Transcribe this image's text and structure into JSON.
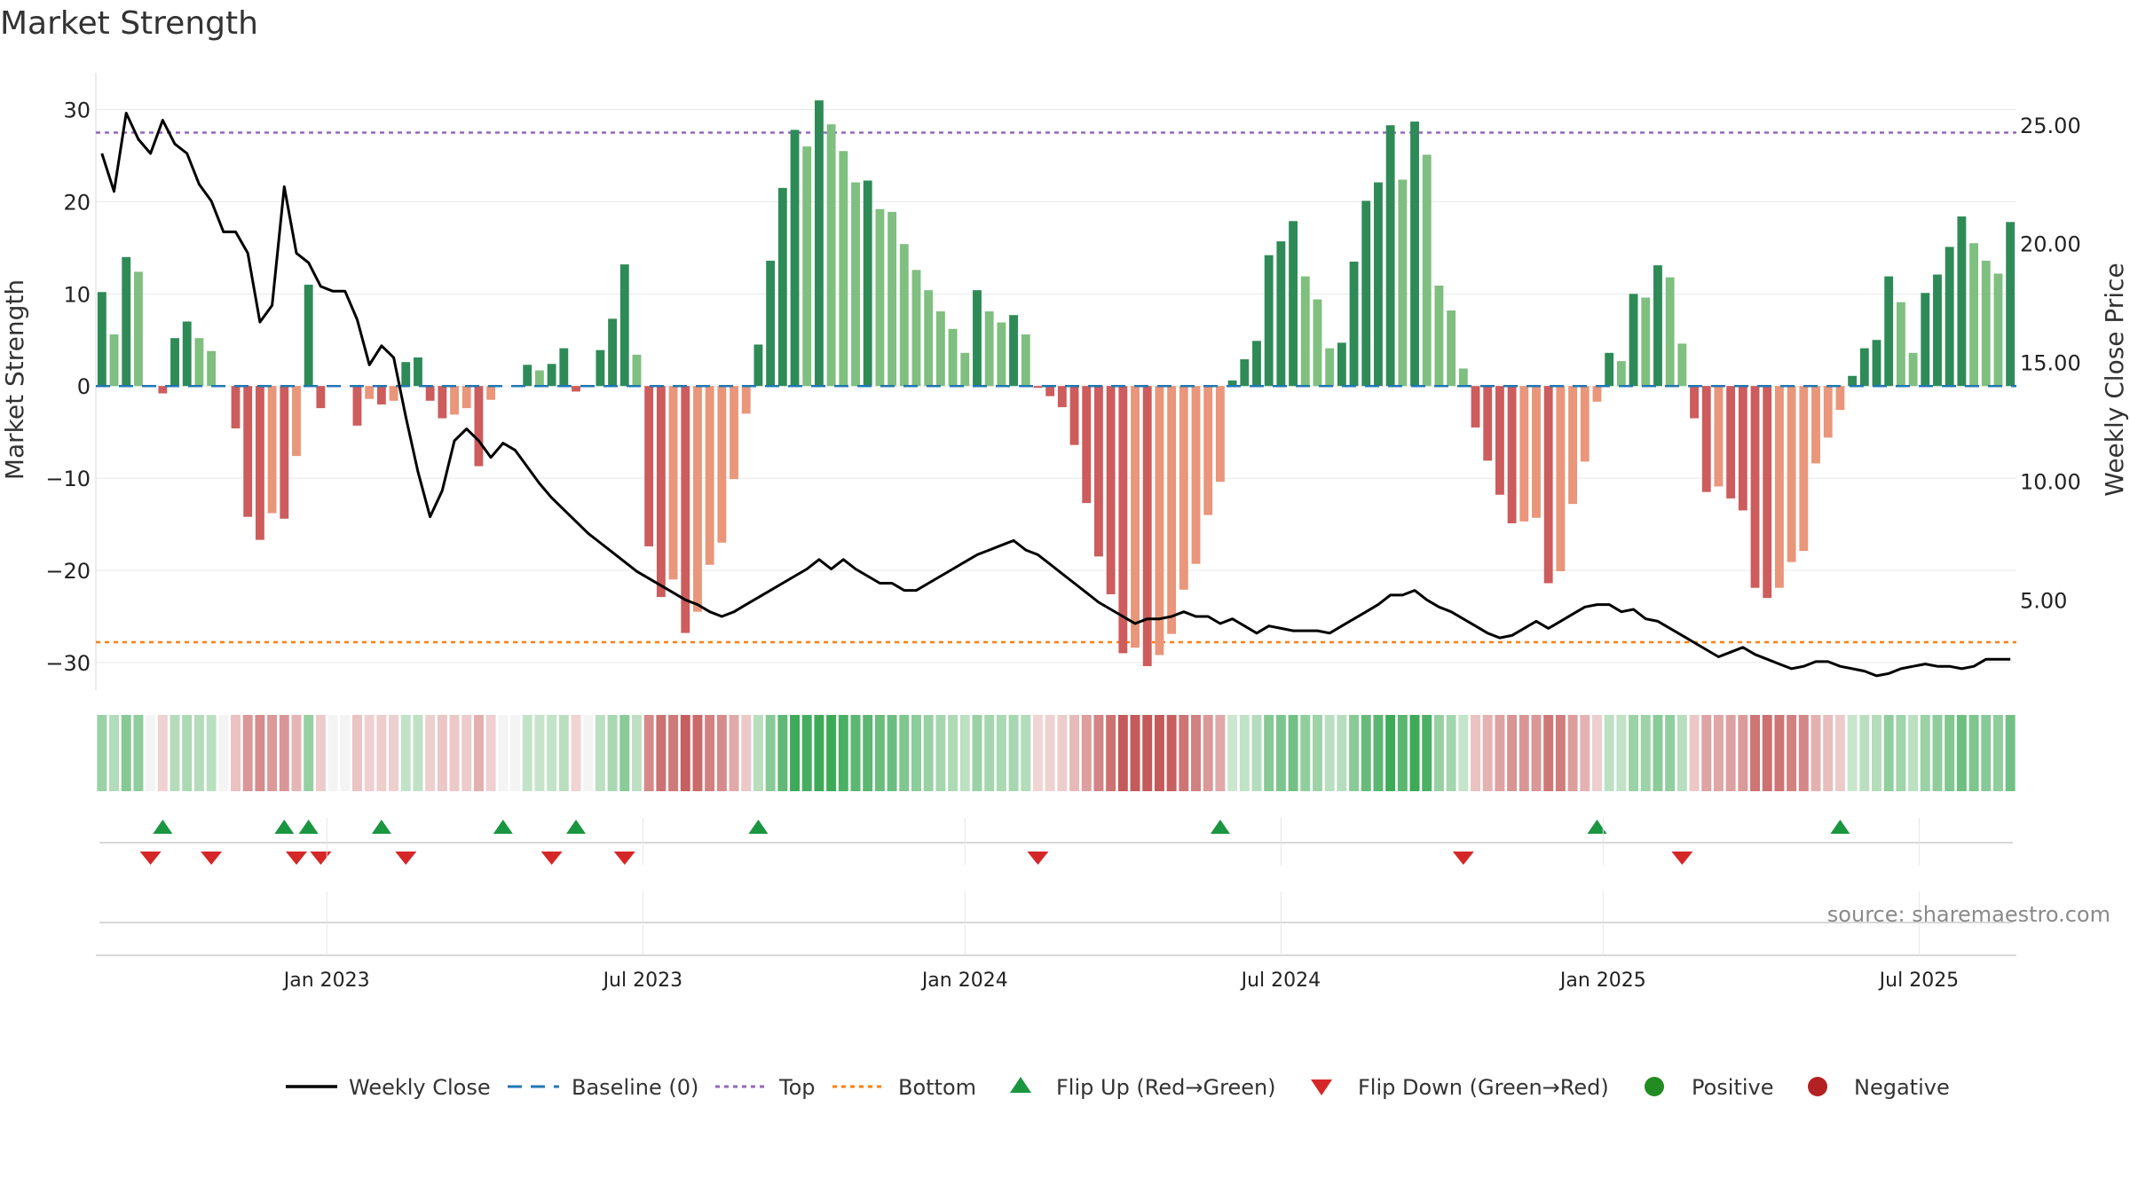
{
  "chart_data": {
    "type": "bar",
    "title": "Market Strength",
    "ylabel_left": "Market Strength",
    "ylabel_right": "Weekly Close Price",
    "source": "source: sharemaestro.com",
    "y_left_ticks": [
      30,
      20,
      10,
      0,
      -10,
      -20,
      -30
    ],
    "y_left_tick_labels": [
      "30",
      "20",
      "10",
      "0",
      "−10",
      "−20",
      "−30"
    ],
    "y_left_range": [
      -33,
      34
    ],
    "y_right_ticks": [
      "25.00",
      "20.00",
      "15.00",
      "10.00",
      "5.00"
    ],
    "y_right_range": [
      1.2,
      27.2
    ],
    "top_level": 27.5,
    "bottom_level": -27.8,
    "x_ticks": [
      {
        "label": "Jan 2023",
        "week": 19
      },
      {
        "label": "Jul 2023",
        "week": 45
      },
      {
        "label": "Jan 2024",
        "week": 71.5
      },
      {
        "label": "Jul 2024",
        "week": 97.5
      },
      {
        "label": "Jan 2025",
        "week": 124
      },
      {
        "label": "Jul 2025",
        "week": 150
      }
    ],
    "weeks": 158,
    "strength": [
      10.2,
      5.6,
      14,
      12.4,
      0,
      -0.8,
      5.2,
      7,
      5.2,
      3.8,
      0,
      -4.6,
      -14.2,
      -16.7,
      -13.8,
      -14.4,
      -7.6,
      11,
      -2.4,
      0,
      0,
      -4.3,
      -1.4,
      -2,
      -1.6,
      2.6,
      3.1,
      -1.6,
      -3.5,
      -3.1,
      -2.4,
      -8.7,
      -1.5,
      0,
      0,
      2.3,
      1.7,
      2.4,
      4.1,
      -0.6,
      0,
      3.9,
      7.3,
      13.2,
      3.4,
      -17.4,
      -22.9,
      -21,
      -26.8,
      -24.5,
      -19.4,
      -17,
      -10.1,
      -3,
      4.5,
      13.6,
      21.5,
      27.8,
      26,
      31,
      28.4,
      25.5,
      22.1,
      22.3,
      19.2,
      18.9,
      15.4,
      12.6,
      10.4,
      8.1,
      6.2,
      3.6,
      10.4,
      8.1,
      6.9,
      7.7,
      5.6,
      -0.2,
      -1.1,
      -2.3,
      -6.4,
      -12.7,
      -18.5,
      -22.6,
      -29,
      -28.4,
      -30.4,
      -29.2,
      -26.9,
      -22.1,
      -19.3,
      -14,
      -10.4,
      0.6,
      2.9,
      4.9,
      14.2,
      15.7,
      17.9,
      11.9,
      9.4,
      4.1,
      4.7,
      13.5,
      20.1,
      22.1,
      28.3,
      22.4,
      28.7,
      25.1,
      10.9,
      8.2,
      1.9,
      -4.5,
      -8.1,
      -11.8,
      -14.9,
      -14.7,
      -14.3,
      -21.4,
      -20.1,
      -12.8,
      -8.2,
      -1.7,
      3.6,
      2.7,
      10,
      9.6,
      13.1,
      11.8,
      4.6,
      -3.5,
      -11.5,
      -10.9,
      -12.2,
      -13.5,
      -21.9,
      -23,
      -21.9,
      -19.1,
      -17.9,
      -8.4,
      -5.6,
      -2.6,
      1.1,
      4.1,
      5,
      11.9,
      9.1,
      3.6,
      10.1,
      12.1,
      15.1,
      18.4,
      15.5,
      13.6,
      12.2,
      17.8
    ],
    "weekly_close": [
      23.8,
      22.2,
      25.5,
      24.4,
      23.8,
      25.2,
      24.2,
      23.8,
      22.5,
      21.8,
      20.5,
      20.5,
      19.6,
      16.7,
      17.4,
      22.4,
      19.6,
      19.2,
      18.2,
      18,
      18,
      16.8,
      14.9,
      15.7,
      15.2,
      12.7,
      10.4,
      8.5,
      9.6,
      11.7,
      12.2,
      11.7,
      11,
      11.6,
      11.3,
      10.6,
      9.9,
      9.3,
      8.8,
      8.3,
      7.8,
      7.4,
      7,
      6.6,
      6.2,
      5.9,
      5.6,
      5.3,
      5,
      4.8,
      4.5,
      4.3,
      4.5,
      4.8,
      5.1,
      5.4,
      5.7,
      6.0,
      6.3,
      6.7,
      6.3,
      6.7,
      6.3,
      6.0,
      5.7,
      5.7,
      5.4,
      5.4,
      5.7,
      6.0,
      6.3,
      6.6,
      6.9,
      7.1,
      7.3,
      7.5,
      7.1,
      6.9,
      6.5,
      6.1,
      5.7,
      5.3,
      4.9,
      4.6,
      4.3,
      4.0,
      4.2,
      4.2,
      4.3,
      4.5,
      4.3,
      4.3,
      4.0,
      4.2,
      3.9,
      3.6,
      3.9,
      3.8,
      3.7,
      3.7,
      3.7,
      3.6,
      3.9,
      4.2,
      4.5,
      4.8,
      5.2,
      5.2,
      5.4,
      5.0,
      4.7,
      4.5,
      4.2,
      3.9,
      3.6,
      3.4,
      3.5,
      3.8,
      4.1,
      3.8,
      4.1,
      4.4,
      4.7,
      4.8,
      4.8,
      4.5,
      4.6,
      4.2,
      4.1,
      3.8,
      3.5,
      3.2,
      2.9,
      2.6,
      2.8,
      3.0,
      2.7,
      2.5,
      2.3,
      2.1,
      2.2,
      2.4,
      2.4,
      2.2,
      2.1,
      2.0,
      1.8,
      1.9,
      2.1,
      2.2,
      2.3,
      2.2,
      2.2,
      2.1,
      2.2,
      2.5,
      2.5,
      2.5
    ],
    "flip_up_weeks": [
      5,
      15,
      17,
      23,
      33,
      39,
      54,
      92,
      123,
      143
    ],
    "flip_down_weeks": [
      4,
      9,
      16,
      18,
      25,
      37,
      43,
      77,
      112,
      130
    ],
    "legend": [
      "Weekly Close",
      "Baseline (0)",
      "Top",
      "Bottom",
      "Flip Up (Red→Green)",
      "Flip Down (Green→Red)",
      "Positive",
      "Negative"
    ],
    "colors": {
      "bar_pos_dark": "#2e8b57",
      "bar_pos_light": "#7fbf7f",
      "bar_neg_dark": "#cd5c5c",
      "bar_neg_light": "#e9967a",
      "price_line": "#000000",
      "baseline": "#1f77b4",
      "top": "#9467bd",
      "bottom": "#ff7f0e",
      "flip_up": "#1a9641",
      "flip_down": "#d62728",
      "positive": "#228b22",
      "negative": "#b22222",
      "grid": "#e8e8e8"
    }
  }
}
